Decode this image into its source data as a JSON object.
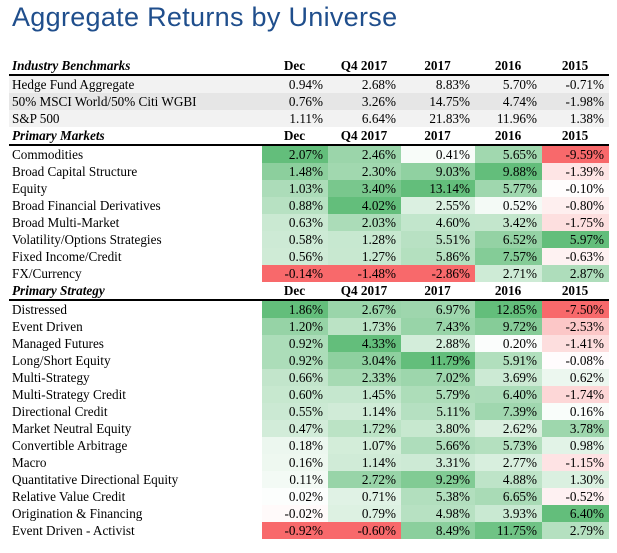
{
  "title": "Aggregate Returns by Universe",
  "chart_data": {
    "type": "table",
    "title": "Aggregate Returns by Universe",
    "columns": [
      "Dec",
      "Q4 2017",
      "2017",
      "2016",
      "2015"
    ],
    "sections": [
      {
        "name": "Industry Benchmarks",
        "colored": false,
        "rows": [
          {
            "label": "Hedge Fund Aggregate",
            "values": [
              0.94,
              2.68,
              8.83,
              5.7,
              -0.71
            ]
          },
          {
            "label": "50% MSCI World/50% Citi WGBI",
            "values": [
              0.76,
              3.26,
              14.75,
              4.74,
              -1.98
            ]
          },
          {
            "label": "S&P 500",
            "values": [
              1.11,
              6.64,
              21.83,
              11.96,
              1.38
            ]
          }
        ]
      },
      {
        "name": "Primary Markets",
        "colored": true,
        "rows": [
          {
            "label": "Commodities",
            "values": [
              2.07,
              2.46,
              0.41,
              5.65,
              -9.59
            ]
          },
          {
            "label": "Broad Capital Structure",
            "values": [
              1.48,
              2.3,
              9.03,
              9.88,
              -1.39
            ]
          },
          {
            "label": "Equity",
            "values": [
              1.03,
              3.4,
              13.14,
              5.77,
              -0.1
            ]
          },
          {
            "label": "Broad Financial Derivatives",
            "values": [
              0.88,
              4.02,
              2.55,
              0.52,
              -0.8
            ]
          },
          {
            "label": "Broad Multi-Market",
            "values": [
              0.63,
              2.03,
              4.6,
              3.42,
              -1.75
            ]
          },
          {
            "label": "Volatility/Options Strategies",
            "values": [
              0.58,
              1.28,
              5.51,
              6.52,
              5.97
            ]
          },
          {
            "label": "Fixed Income/Credit",
            "values": [
              0.56,
              1.27,
              5.86,
              7.57,
              -0.63
            ]
          },
          {
            "label": "FX/Currency",
            "values": [
              -0.14,
              -1.48,
              -2.86,
              2.71,
              2.87
            ]
          }
        ]
      },
      {
        "name": "Primary Strategy",
        "colored": true,
        "rows": [
          {
            "label": "Distressed",
            "values": [
              1.86,
              2.67,
              6.97,
              12.85,
              -7.5
            ]
          },
          {
            "label": "Event Driven",
            "values": [
              1.2,
              1.73,
              7.43,
              9.72,
              -2.53
            ]
          },
          {
            "label": "Managed Futures",
            "values": [
              0.92,
              4.33,
              2.88,
              0.2,
              -1.41
            ]
          },
          {
            "label": "Long/Short Equity",
            "values": [
              0.92,
              3.04,
              11.79,
              5.91,
              -0.08
            ]
          },
          {
            "label": "Multi-Strategy",
            "values": [
              0.66,
              2.33,
              7.02,
              3.69,
              0.62
            ]
          },
          {
            "label": "Multi-Strategy Credit",
            "values": [
              0.6,
              1.45,
              5.79,
              6.4,
              -1.74
            ]
          },
          {
            "label": "Directional Credit",
            "values": [
              0.55,
              1.14,
              5.11,
              7.39,
              0.16
            ]
          },
          {
            "label": "Market Neutral Equity",
            "values": [
              0.47,
              1.72,
              3.8,
              2.62,
              3.78
            ]
          },
          {
            "label": "Convertible Arbitrage",
            "values": [
              0.18,
              1.07,
              5.66,
              5.73,
              0.98
            ]
          },
          {
            "label": "Macro",
            "values": [
              0.16,
              1.14,
              3.31,
              2.77,
              -1.15
            ]
          },
          {
            "label": "Quantitative Directional Equity",
            "values": [
              0.11,
              2.72,
              9.29,
              4.88,
              1.3
            ]
          },
          {
            "label": "Relative Value Credit",
            "values": [
              0.02,
              0.71,
              5.38,
              6.65,
              -0.52
            ]
          },
          {
            "label": "Origination & Financing",
            "values": [
              -0.02,
              0.79,
              4.98,
              3.93,
              6.4
            ]
          },
          {
            "label": "Event Driven - Activist",
            "values": [
              -0.92,
              -0.6,
              8.49,
              11.75,
              2.79
            ]
          }
        ]
      }
    ]
  }
}
